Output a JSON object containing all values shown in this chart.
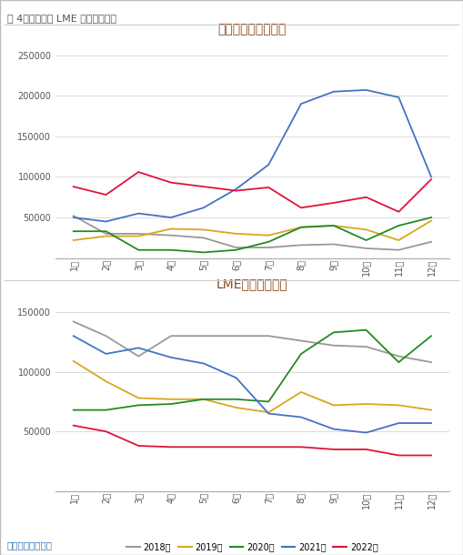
{
  "title_main": "图 4：上期所和 LME 铅库存（吨）",
  "chart1_title": "上期所铅库存（吨）",
  "chart2_title": "LME铅库存（吨）",
  "source": "数据来源：同花顺",
  "months": [
    "1月",
    "2月",
    "3月",
    "4月",
    "5月",
    "6月",
    "7月",
    "8月",
    "9月",
    "10月",
    "11月",
    "12月"
  ],
  "legend_labels": [
    "2018年",
    "2019年",
    "2020年",
    "2021年",
    "2022年"
  ],
  "colors": [
    "#999999",
    "#DAA520",
    "#228B22",
    "#4472C4",
    "#DC143C"
  ],
  "chart1": {
    "2018": [
      52000,
      30000,
      30000,
      28000,
      25000,
      13000,
      13000,
      16000,
      17000,
      12000,
      10000,
      20000
    ],
    "2019": [
      22000,
      27000,
      27000,
      36000,
      35000,
      30000,
      28000,
      38000,
      40000,
      35000,
      22000,
      46000
    ],
    "2020": [
      33000,
      33000,
      10000,
      10000,
      7000,
      10000,
      20000,
      38000,
      40000,
      22000,
      40000,
      50000
    ],
    "2021": [
      50000,
      45000,
      55000,
      50000,
      62000,
      85000,
      115000,
      190000,
      205000,
      207000,
      198000,
      100000
    ],
    "2022": [
      88000,
      78000,
      106000,
      93000,
      88000,
      83000,
      87000,
      62000,
      68000,
      75000,
      57000,
      97000
    ]
  },
  "chart1_ylim": [
    0,
    270000
  ],
  "chart1_yticks": [
    0,
    50000,
    100000,
    150000,
    200000,
    250000
  ],
  "chart2": {
    "2018": [
      142000,
      130000,
      113000,
      130000,
      130000,
      130000,
      130000,
      126000,
      122000,
      121000,
      113000,
      108000
    ],
    "2019": [
      109000,
      92000,
      78000,
      77000,
      77000,
      70000,
      66000,
      83000,
      72000,
      73000,
      72000,
      68000
    ],
    "2020": [
      68000,
      68000,
      72000,
      73000,
      77000,
      77000,
      75000,
      115000,
      133000,
      135000,
      108000,
      130000
    ],
    "2021": [
      130000,
      115000,
      120000,
      112000,
      107000,
      95000,
      65000,
      62000,
      52000,
      49000,
      57000,
      57000
    ],
    "2022": [
      55000,
      50000,
      38000,
      37000,
      37000,
      37000,
      37000,
      37000,
      35000,
      35000,
      30000,
      30000
    ]
  },
  "chart2_ylim": [
    0,
    165000
  ],
  "chart2_yticks": [
    0,
    50000,
    100000,
    150000
  ]
}
